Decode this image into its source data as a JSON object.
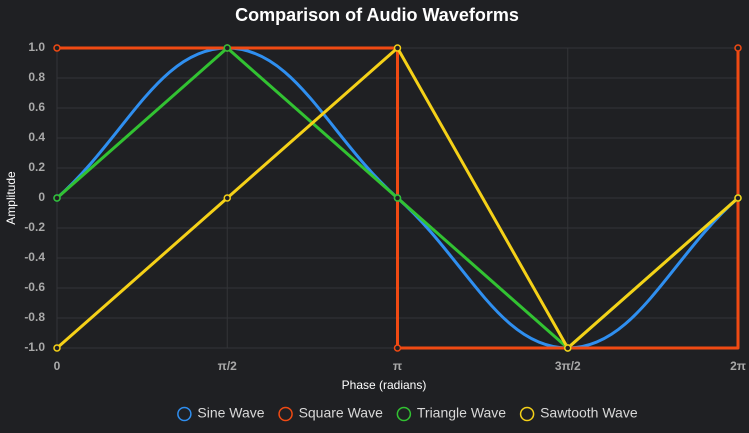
{
  "chart_data": {
    "type": "line",
    "title": "Comparison of Audio Waveforms",
    "x_label": "Phase (radians)",
    "y_label": "Amplitude",
    "categories": [
      "0",
      "π/2",
      "π",
      "3π/2",
      "2π"
    ],
    "series": [
      {
        "name": "Sine Wave",
        "color": "#2f8ff0",
        "values": [
          0,
          1,
          0,
          -1,
          0
        ],
        "smooth": true
      },
      {
        "name": "Square Wave",
        "color": "#f04a13",
        "values": [
          1,
          1,
          -1,
          -1,
          1
        ],
        "stepped": "after"
      },
      {
        "name": "Triangle Wave",
        "color": "#32c232",
        "values": [
          0,
          1,
          0,
          -1,
          0
        ]
      },
      {
        "name": "Sawtooth Wave",
        "color": "#f5d118",
        "values": [
          -1,
          0,
          1,
          -1,
          0
        ]
      }
    ],
    "ylim": [
      -1,
      1
    ],
    "yticks": [
      {
        "value": -1,
        "label": "-1.0"
      },
      -0.8,
      -0.6,
      -0.4,
      -0.2,
      0,
      0.2,
      0.4,
      0.6,
      0.8,
      {
        "value": 1,
        "label": "1.0"
      }
    ],
    "grid": true,
    "legend": "bottom"
  }
}
